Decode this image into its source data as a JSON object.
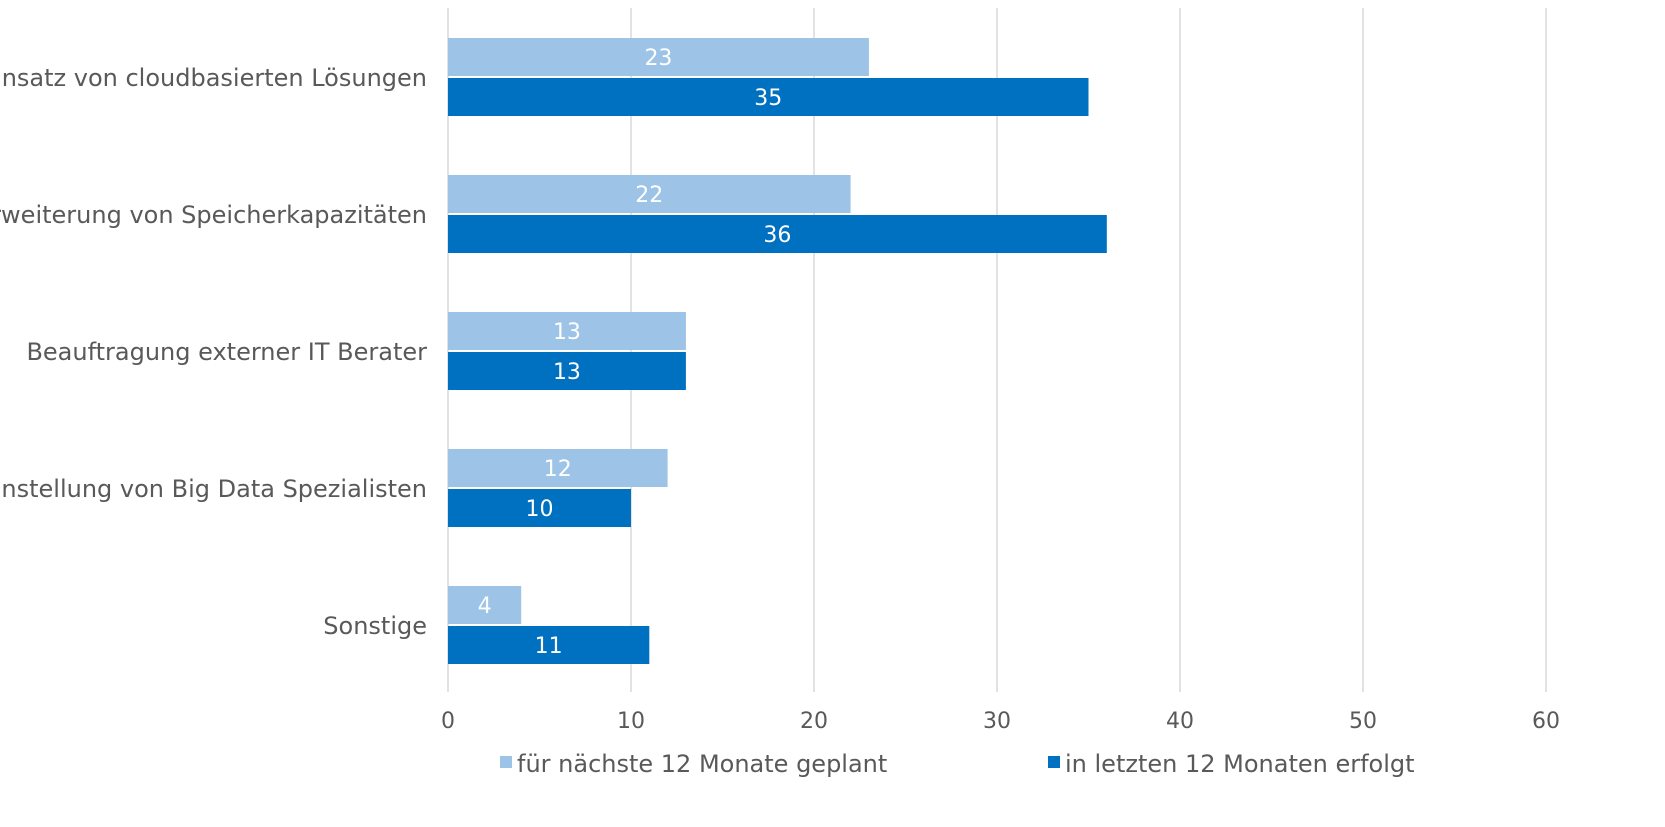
{
  "chart_data": {
    "type": "bar",
    "orientation": "horizontal",
    "categories": [
      "Einsatz von cloudbasierten Lösungen",
      "Erweiterung von Speicherkapazitäten",
      "Beauftragung externer IT Berater",
      "Einstellung von Big Data Spezialisten",
      "Sonstige"
    ],
    "series": [
      {
        "name": "für nächste 12 Monate geplant",
        "values": [
          23,
          22,
          13,
          12,
          4
        ],
        "color": "#9dc3e6"
      },
      {
        "name": "in letzten 12 Monaten erfolgt",
        "values": [
          35,
          36,
          13,
          10,
          11
        ],
        "color": "#0070c0"
      }
    ],
    "xlim": [
      0,
      60
    ],
    "xticks": [
      "0",
      "10",
      "20",
      "30",
      "40",
      "50",
      "60"
    ],
    "grid": true,
    "legend_position": "bottom"
  }
}
